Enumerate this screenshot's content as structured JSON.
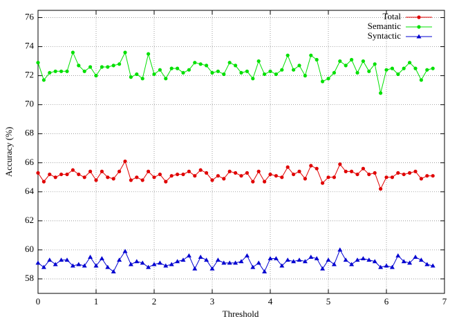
{
  "chart_data": {
    "type": "line",
    "x_label": "Threshold",
    "y_label": "Accuracy (%)",
    "x": [
      0,
      0.1,
      0.2,
      0.3,
      0.4,
      0.5,
      0.6,
      0.7,
      0.8,
      0.9,
      1,
      1.1,
      1.2,
      1.3,
      1.4,
      1.5,
      1.6,
      1.7,
      1.8,
      1.9,
      2,
      2.1,
      2.2,
      2.3,
      2.4,
      2.5,
      2.6,
      2.7,
      2.8,
      2.9,
      3,
      3.1,
      3.2,
      3.3,
      3.4,
      3.5,
      3.6,
      3.7,
      3.8,
      3.9,
      4,
      4.1,
      4.2,
      4.3,
      4.4,
      4.5,
      4.6,
      4.7,
      4.8,
      4.9,
      5,
      5.1,
      5.2,
      5.3,
      5.4,
      5.5,
      5.6,
      5.7,
      5.8,
      5.9,
      6,
      6.1,
      6.2,
      6.3,
      6.4,
      6.5,
      6.6,
      6.7,
      6.8
    ],
    "series": [
      {
        "name": "Total",
        "color": "#e00000",
        "marker": "circle",
        "values": [
          65.3,
          64.7,
          65.2,
          65.0,
          65.2,
          65.2,
          65.5,
          65.2,
          65.0,
          65.4,
          64.8,
          65.4,
          65.0,
          64.9,
          65.4,
          66.1,
          64.8,
          65.0,
          64.8,
          65.4,
          65.0,
          65.2,
          64.7,
          65.1,
          65.2,
          65.2,
          65.4,
          65.1,
          65.5,
          65.3,
          64.8,
          65.1,
          64.9,
          65.4,
          65.3,
          65.1,
          65.3,
          64.7,
          65.4,
          64.7,
          65.2,
          65.1,
          65.0,
          65.7,
          65.2,
          65.4,
          64.9,
          65.8,
          65.6,
          64.6,
          65.0,
          65.0,
          65.9,
          65.4,
          65.4,
          65.2,
          65.6,
          65.2,
          65.3,
          64.2,
          65.0,
          65.0,
          65.3,
          65.2,
          65.3,
          65.4,
          64.9,
          65.1,
          65.1
        ]
      },
      {
        "name": "Semantic",
        "color": "#00e000",
        "marker": "circle",
        "values": [
          72.9,
          71.7,
          72.2,
          72.3,
          72.3,
          72.3,
          73.6,
          72.7,
          72.3,
          72.6,
          72.0,
          72.6,
          72.6,
          72.7,
          72.8,
          73.6,
          71.9,
          72.1,
          71.8,
          73.5,
          72.1,
          72.4,
          71.8,
          72.5,
          72.5,
          72.2,
          72.4,
          72.9,
          72.8,
          72.7,
          72.2,
          72.3,
          72.1,
          72.9,
          72.7,
          72.2,
          72.3,
          71.8,
          73.0,
          72.1,
          72.3,
          72.1,
          72.4,
          73.4,
          72.4,
          72.7,
          72.0,
          73.4,
          73.1,
          71.6,
          71.8,
          72.2,
          73.0,
          72.7,
          73.1,
          72.2,
          73.0,
          72.3,
          72.8,
          70.8,
          72.4,
          72.5,
          72.1,
          72.5,
          72.9,
          72.5,
          71.7,
          72.4,
          72.5
        ]
      },
      {
        "name": "Syntactic",
        "color": "#0000d0",
        "marker": "triangle",
        "values": [
          59.1,
          58.8,
          59.3,
          59.0,
          59.3,
          59.3,
          58.9,
          59.0,
          58.9,
          59.5,
          58.9,
          59.4,
          58.8,
          58.5,
          59.3,
          59.9,
          59.0,
          59.2,
          59.1,
          58.8,
          59.0,
          59.1,
          58.9,
          59.0,
          59.2,
          59.3,
          59.6,
          58.7,
          59.5,
          59.3,
          58.7,
          59.3,
          59.1,
          59.1,
          59.1,
          59.2,
          59.6,
          58.8,
          59.1,
          58.5,
          59.4,
          59.4,
          58.9,
          59.3,
          59.2,
          59.3,
          59.2,
          59.5,
          59.4,
          58.7,
          59.3,
          59.0,
          60.0,
          59.3,
          59.0,
          59.3,
          59.4,
          59.3,
          59.2,
          58.8,
          58.9,
          58.8,
          59.6,
          59.2,
          59.1,
          59.5,
          59.3,
          59.0,
          58.9
        ]
      }
    ],
    "xlim": [
      0,
      7
    ],
    "xticks": [
      0,
      1,
      2,
      3,
      4,
      5,
      6,
      7
    ],
    "ylim": [
      57,
      76.5
    ],
    "yticks": [
      58,
      60,
      62,
      64,
      66,
      68,
      70,
      72,
      74,
      76
    ],
    "grid": true,
    "legend": "top-right"
  }
}
